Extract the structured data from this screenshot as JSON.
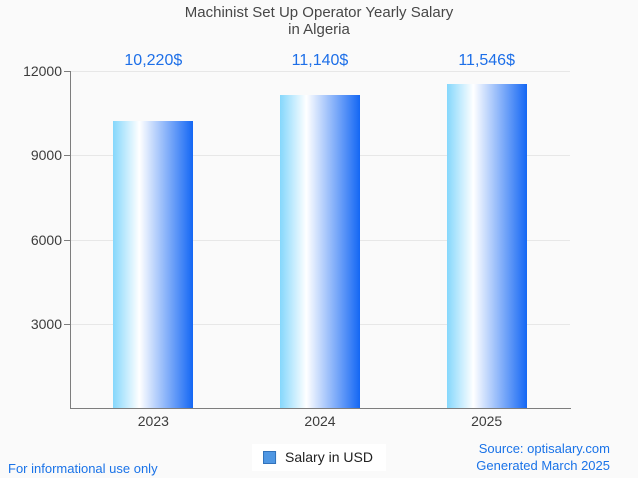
{
  "chart_data": {
    "type": "bar",
    "title": "Machinist Set Up Operator Yearly Salary in Algeria",
    "title_lines": [
      "Machinist Set Up Operator Yearly Salary",
      "in Algeria"
    ],
    "categories": [
      "2023",
      "2024",
      "2025"
    ],
    "series": [
      {
        "name": "Salary in USD",
        "values": [
          10220,
          11140,
          11546
        ],
        "value_labels": [
          "10,220$",
          "11,140$",
          "11,546$"
        ]
      }
    ],
    "ylim": [
      0,
      12000
    ],
    "yticks": [
      12000,
      9000,
      6000,
      3000
    ],
    "grid": true,
    "legend_position": "bottom-center",
    "colors": {
      "bar_gradient": [
        "#85d7fc",
        "#ffffff",
        "#1467f4"
      ],
      "bar_gradient_white_stop_pct": 33,
      "value_label": "#1d6fe8",
      "gridline": "#e7e7e7",
      "axis_line": "#7d7d7d",
      "axis_text": "#3c3c3c",
      "title_text": "#474747"
    }
  },
  "legend": {
    "label": "Salary in USD",
    "marker_fill": "#4f97e3",
    "marker_border": "#3172bb"
  },
  "footer": {
    "disclaimer": "For informational use only",
    "source": "Source: optisalary.com",
    "generated": "Generated March 2025",
    "link_color": "#1a73e8"
  }
}
